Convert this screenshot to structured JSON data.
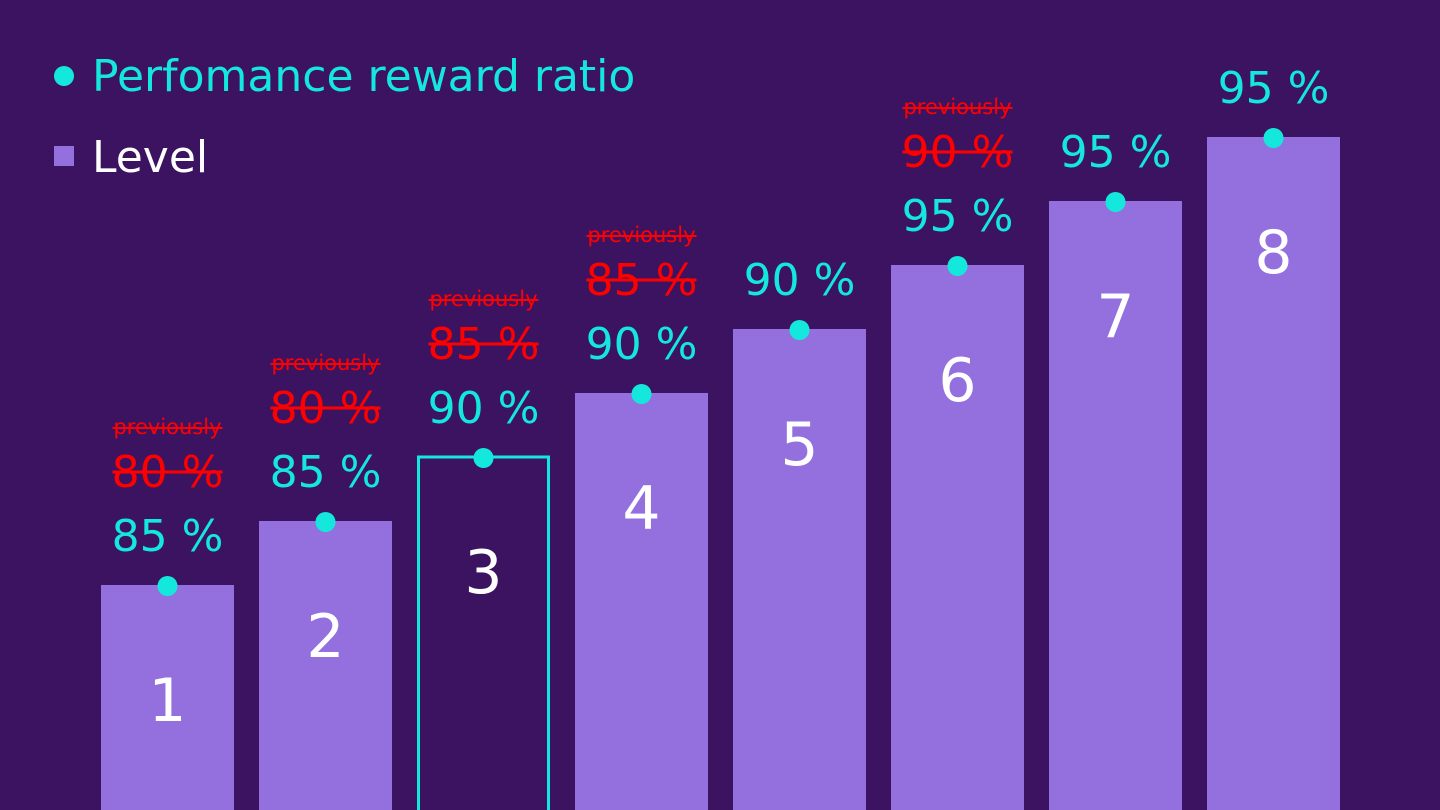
{
  "colors": {
    "background": "#3c1361",
    "bar": "#9370de",
    "highlight_fill": "#3c1361",
    "highlight_stroke": "#14e8dc",
    "ratio": "#14e8dc",
    "previous": "#ff0000",
    "level_text": "#ffffff"
  },
  "legend": {
    "ratio_label": "Perfomance reward ratio",
    "level_label": "Level"
  },
  "chart_data": {
    "type": "bar",
    "legend_position": "top-left",
    "grid": false,
    "categories": [
      "1",
      "2",
      "3",
      "4",
      "5",
      "6",
      "7",
      "8"
    ],
    "series": [
      {
        "name": "Level",
        "values": [
          1,
          2,
          3,
          4,
          5,
          6,
          7,
          8
        ]
      },
      {
        "name": "Perfomance reward ratio",
        "values": [
          85,
          85,
          90,
          90,
          90,
          95,
          95,
          95
        ]
      }
    ],
    "bar_labels": [
      "1",
      "2",
      "3",
      "4",
      "5",
      "6",
      "7",
      "8"
    ],
    "ratio_labels": [
      "85 %",
      "85 %",
      "90 %",
      "90 %",
      "90 %",
      "95 %",
      "95 %",
      "95 %"
    ],
    "previous_labels": [
      "80 %",
      "80 %",
      "85 %",
      "85 %",
      null,
      "90 %",
      null,
      null
    ],
    "previously_text": "previously",
    "highlighted_index": 2
  }
}
